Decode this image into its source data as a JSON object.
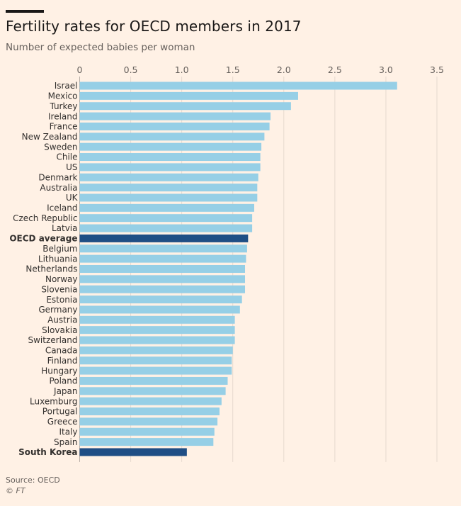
{
  "header": {
    "title": "Fertility rates for OECD members in 2017",
    "subtitle": "Number of expected babies per woman"
  },
  "footer": {
    "source": "Source: OECD",
    "credit": "© FT"
  },
  "colors": {
    "bar": "#96cfe6",
    "highlight": "#1f4e85",
    "grid": "#e6d9ce",
    "axis_line": "#b8aea6",
    "text": "#33302e"
  },
  "chart_data": {
    "type": "bar",
    "orientation": "horizontal",
    "title": "Fertility rates for OECD members in 2017",
    "subtitle": "Number of expected babies per woman",
    "xlim": [
      0,
      3.5
    ],
    "ticks": [
      0,
      0.5,
      1.0,
      1.5,
      2.0,
      2.5,
      3.0,
      3.5
    ],
    "tick_labels": [
      "0",
      "0.5",
      "1.0",
      "1.5",
      "2.0",
      "2.5",
      "3.0",
      "3.5"
    ],
    "grid": true,
    "categories": [
      "Israel",
      "Mexico",
      "Turkey",
      "Ireland",
      "France",
      "New Zealand",
      "Sweden",
      "Chile",
      "US",
      "Denmark",
      "Australia",
      "UK",
      "Iceland",
      "Czech Republic",
      "Latvia",
      "OECD average",
      "Belgium",
      "Lithuania",
      "Netherlands",
      "Norway",
      "Slovenia",
      "Estonia",
      "Germany",
      "Austria",
      "Slovakia",
      "Switzerland",
      "Canada",
      "Finland",
      "Hungary",
      "Poland",
      "Japan",
      "Luxemburg",
      "Portugal",
      "Greece",
      "Italy",
      "Spain",
      "South Korea"
    ],
    "values": [
      3.11,
      2.14,
      2.07,
      1.87,
      1.86,
      1.81,
      1.78,
      1.77,
      1.77,
      1.75,
      1.74,
      1.74,
      1.71,
      1.69,
      1.69,
      1.65,
      1.64,
      1.63,
      1.62,
      1.62,
      1.62,
      1.59,
      1.57,
      1.52,
      1.52,
      1.52,
      1.5,
      1.49,
      1.49,
      1.45,
      1.43,
      1.39,
      1.37,
      1.35,
      1.32,
      1.31,
      1.05
    ],
    "highlighted": [
      "OECD average",
      "South Korea"
    ]
  }
}
